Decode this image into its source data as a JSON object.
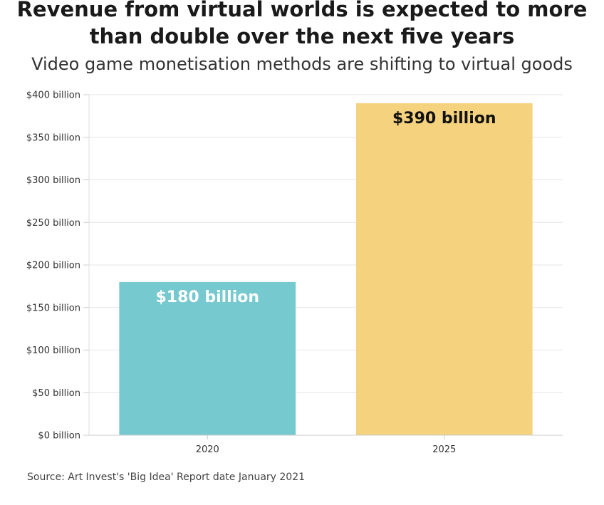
{
  "header": {
    "title": "Revenue from virtual worlds is expected to more than double over the next five years",
    "subtitle": "Video game monetisation methods are shifting to virtual goods"
  },
  "footer": {
    "source": "Source: Art Invest's 'Big Idea' Report date January 2021"
  },
  "chart_data": {
    "type": "bar",
    "categories": [
      "2020",
      "2025"
    ],
    "values": [
      180,
      390
    ],
    "data_labels": [
      "$180 billion",
      "$390 billion"
    ],
    "bar_colors": [
      "#76c9ce",
      "#f5d27e"
    ],
    "data_label_colors": [
      "#ffffff",
      "#111111"
    ],
    "ylim": [
      0,
      400
    ],
    "yticks": [
      0,
      50,
      100,
      150,
      200,
      250,
      300,
      350,
      400
    ],
    "ytick_labels": [
      "$0 billion",
      "$50 billion",
      "$100 billion",
      "$150 billion",
      "$200 billion",
      "$250 billion",
      "$300 billion",
      "$350 billion",
      "$400 billion"
    ],
    "grid": true,
    "legend": "none"
  }
}
